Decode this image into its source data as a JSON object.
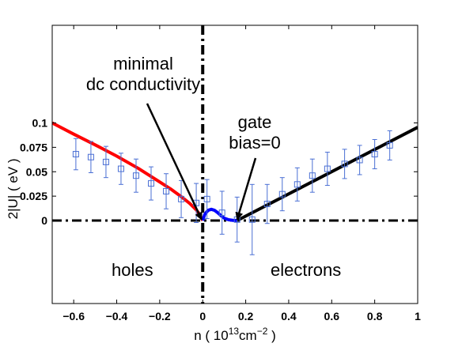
{
  "chart_data": {
    "type": "line",
    "xlabel": {
      "prefix": "n  ( 10",
      "sup1": "13",
      "mid": "cm",
      "sup2": "−2",
      "suffix": " )"
    },
    "ylabel": "2|U| ( eV )",
    "xlim": [
      -0.7,
      1.0
    ],
    "ylim": [
      -0.085,
      0.2
    ],
    "x_ticks": [
      -0.6,
      -0.4,
      -0.2,
      0,
      0.2,
      0.4,
      0.6,
      0.8,
      1
    ],
    "x_tick_labels": [
      "−0.6",
      "−0.4",
      "−0.2",
      "0",
      "0.2",
      "0.4",
      "0.6",
      "0.8",
      "1"
    ],
    "y_ticks": [
      0,
      0.025,
      0.05,
      0.075,
      0.1
    ],
    "y_tick_labels": [
      "0",
      "0.025",
      "0.05",
      "0.075",
      "0.1"
    ],
    "grid": false,
    "series": [
      {
        "style": "line",
        "color": "#ff0000",
        "x": [
          -0.7,
          -0.6,
          -0.5,
          -0.4,
          -0.3,
          -0.2,
          -0.15,
          -0.1,
          -0.06,
          -0.03,
          -0.015,
          0
        ],
        "y": [
          0.1,
          0.0885,
          0.0775,
          0.066,
          0.0535,
          0.0395,
          0.0325,
          0.0245,
          0.0175,
          0.011,
          0.0065,
          0.0
        ]
      },
      {
        "style": "line",
        "color": "#0000ff",
        "x": [
          0,
          0.01,
          0.025,
          0.04,
          0.055,
          0.07,
          0.085,
          0.1,
          0.12,
          0.14,
          0.16
        ],
        "y": [
          0.0,
          0.0065,
          0.0105,
          0.0115,
          0.0105,
          0.008,
          0.005,
          0.0025,
          0.0008,
          0.0002,
          0.0
        ]
      },
      {
        "style": "line",
        "color": "#000000",
        "x": [
          0.16,
          1.0
        ],
        "y": [
          0.0,
          0.0955
        ]
      },
      {
        "style": "points_with_error_bars",
        "marker": "square",
        "color": "#4a6fd4",
        "x": [
          -0.59,
          -0.52,
          -0.45,
          -0.38,
          -0.31,
          -0.24,
          -0.17,
          -0.1,
          -0.03,
          0.02,
          0.09,
          0.16,
          0.23,
          0.3,
          0.37,
          0.44,
          0.51,
          0.58,
          0.66,
          0.73,
          0.8,
          0.87
        ],
        "y": [
          0.068,
          0.065,
          0.06,
          0.053,
          0.046,
          0.038,
          0.03,
          0.022,
          0.018,
          0.022,
          0.008,
          0.001,
          0.001,
          0.017,
          0.027,
          0.037,
          0.046,
          0.053,
          0.058,
          0.062,
          0.068,
          0.077
        ],
        "err": [
          0.016,
          0.016,
          0.016,
          0.016,
          0.017,
          0.017,
          0.018,
          0.019,
          0.02,
          0.02,
          0.022,
          0.023,
          0.036,
          0.02,
          0.017,
          0.017,
          0.017,
          0.017,
          0.015,
          0.015,
          0.015,
          0.015
        ]
      }
    ],
    "reference_lines": [
      {
        "orientation": "horizontal",
        "value": 0,
        "style": "dash-dot"
      },
      {
        "orientation": "vertical",
        "value": 0,
        "style": "dash-dot"
      }
    ],
    "annotations": [
      {
        "lines": [
          "minimal",
          "dc conductivity"
        ],
        "arrow_to": [
          -0.005,
          0.001
        ]
      },
      {
        "lines": [
          "gate",
          "bias=0"
        ],
        "arrow_to": [
          0.16,
          0.001
        ]
      },
      {
        "lines": [
          "holes"
        ]
      },
      {
        "lines": [
          "electrons"
        ]
      }
    ]
  }
}
